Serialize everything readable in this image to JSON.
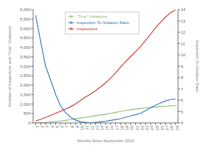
{
  "chart_data": {
    "type": "line",
    "x": [
      1,
      2,
      3,
      4,
      5,
      6,
      7,
      8,
      9,
      10,
      11,
      12,
      13,
      14,
      15,
      16,
      17,
      18,
      19,
      20,
      21,
      22,
      23,
      24,
      25,
      26,
      27,
      28,
      29
    ],
    "xlabel": "Months Since September 2010",
    "ylabel": "Number of Inspections and \"True\" Violations",
    "y2label": "Inspection-To-Violation Ratio",
    "series": [
      {
        "name": "Inspections",
        "color": "#c0392b",
        "values": [
          100,
          190,
          290,
          400,
          510,
          620,
          730,
          860,
          1010,
          1190,
          1370,
          1530,
          1710,
          1910,
          2120,
          2370,
          2650,
          2960,
          3240,
          3510,
          3780,
          4050,
          4370,
          4700,
          5030,
          5330,
          5600,
          5840,
          5980
        ]
      },
      {
        "name": "\"True\" Violations",
        "color": "#8db870",
        "values": [
          5,
          12,
          25,
          45,
          70,
          100,
          135,
          172,
          215,
          258,
          300,
          342,
          380,
          420,
          462,
          508,
          558,
          610,
          655,
          695,
          735,
          765,
          790,
          815,
          840,
          862,
          882,
          902,
          920
        ]
      },
      {
        "name": "Inspection-To-Violation Ratio",
        "color": "#2e75b6",
        "axis": "y2",
        "values": [
          13.5,
          11.2,
          9.0,
          7.8,
          6.5,
          5.5,
          4.9,
          4.5,
          4.25,
          4.1,
          4.05,
          4.0,
          4.05,
          4.1,
          4.15,
          4.22,
          4.3,
          4.38,
          4.5,
          4.62,
          4.72,
          4.85,
          5.08,
          5.35,
          5.56,
          5.76,
          5.93,
          6.06,
          6.12
        ]
      }
    ],
    "xlim": [
      0.5,
      29.5
    ],
    "xticks": [
      1,
      2,
      3,
      4,
      5,
      6,
      7,
      8,
      9,
      10,
      11,
      12,
      13,
      14,
      15,
      16,
      17,
      18,
      19,
      20,
      21,
      22,
      23,
      24,
      25,
      26,
      27,
      28,
      29
    ],
    "ylim": [
      0,
      6000
    ],
    "yticks": [
      0,
      500,
      {
        "value": 1000,
        "label": "1,000"
      },
      {
        "value": 1500,
        "label": "1,500"
      },
      {
        "value": 2000,
        "label": "2,000"
      },
      {
        "value": 2500,
        "label": "2,500"
      },
      {
        "value": 3000,
        "label": "3,000"
      },
      {
        "value": 3500,
        "label": "3,500"
      },
      {
        "value": 4000,
        "label": "4,000"
      },
      {
        "value": 4500,
        "label": "4,500"
      },
      {
        "value": 5000,
        "label": "5,000"
      },
      {
        "value": 5500,
        "label": "5,500"
      },
      {
        "value": 6000,
        "label": "6,000"
      }
    ],
    "y2lim": [
      4,
      14
    ],
    "y2ticks": [
      4,
      5,
      6,
      7,
      8,
      9,
      10,
      11,
      12,
      13,
      14
    ],
    "legend": "upper left",
    "grid": false
  }
}
